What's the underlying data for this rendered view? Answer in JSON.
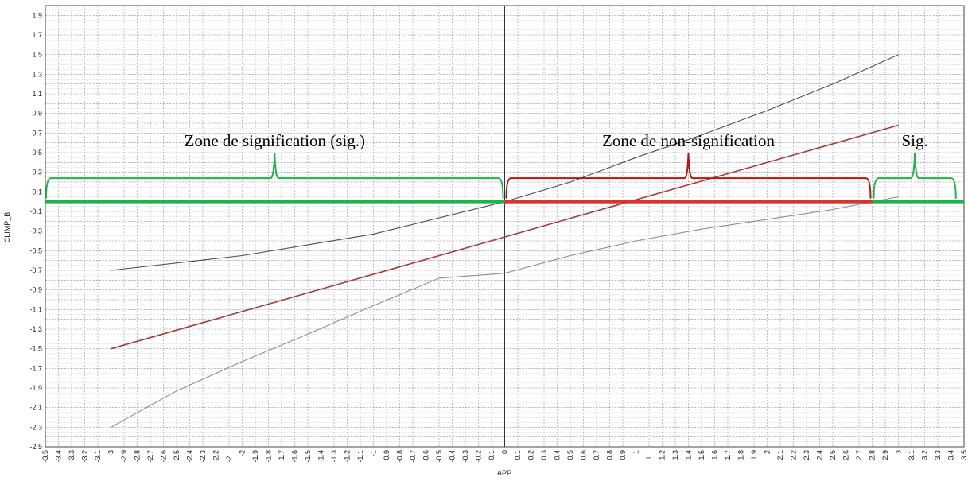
{
  "chart_data": {
    "type": "line",
    "xlabel": "APP",
    "ylabel": "CLIMP_B",
    "xlim": [
      -3.5,
      3.5
    ],
    "ylim": [
      -2.5,
      2.0
    ],
    "x_ticks": [
      -3.5,
      -3.4,
      -3.3,
      -3.2,
      -3.1,
      -3,
      -2.9,
      -2.8,
      -2.7,
      -2.6,
      -2.5,
      -2.4,
      -2.3,
      -2.2,
      -2.1,
      -2,
      -1.9,
      -1.8,
      -1.7,
      -1.6,
      -1.5,
      -1.4,
      -1.3,
      -1.2,
      -1.1,
      -1,
      -0.9,
      -0.8,
      -0.7,
      -0.6,
      -0.5,
      -0.4,
      -0.3,
      -0.2,
      -0.1,
      0,
      0.1,
      0.2,
      0.3,
      0.4,
      0.5,
      0.6,
      0.7,
      0.8,
      0.9,
      1,
      1.1,
      1.2,
      1.3,
      1.4,
      1.5,
      1.6,
      1.7,
      1.8,
      1.9,
      2,
      2.1,
      2.2,
      2.3,
      2.4,
      2.5,
      2.6,
      2.7,
      2.8,
      2.9,
      3,
      3.1,
      3.2,
      3.3,
      3.4,
      3.5
    ],
    "y_ticks": [
      1.9,
      1.7,
      1.5,
      1.3,
      1.1,
      0.9,
      0.7,
      0.5,
      0.3,
      0.1,
      -0.1,
      -0.3,
      -0.5,
      -0.7,
      -0.9,
      -1.1,
      -1.3,
      -1.5,
      -1.7,
      -1.9,
      -2.1,
      -2.3,
      -2.5
    ],
    "grid": true,
    "series": [
      {
        "key": "estimate",
        "color": "#a83a3a",
        "points": [
          [
            -3,
            -1.5
          ],
          [
            3,
            0.78
          ]
        ]
      },
      {
        "key": "upper_bound",
        "color": "#4a4a70",
        "points": [
          [
            -3,
            -0.7
          ],
          [
            -2,
            -0.55
          ],
          [
            -1,
            -0.33
          ],
          [
            0,
            0.0
          ],
          [
            0.5,
            0.2
          ],
          [
            1,
            0.45
          ],
          [
            1.5,
            0.68
          ],
          [
            2,
            0.93
          ],
          [
            2.5,
            1.2
          ],
          [
            3,
            1.5
          ]
        ]
      },
      {
        "key": "lower_bound",
        "color": "#8a8aa8",
        "points": [
          [
            -3,
            -2.3
          ],
          [
            -2.5,
            -1.93
          ],
          [
            -2,
            -1.63
          ],
          [
            -1.5,
            -1.35
          ],
          [
            -1,
            -1.06
          ],
          [
            -0.5,
            -0.78
          ],
          [
            0,
            -0.73
          ],
          [
            0.5,
            -0.55
          ],
          [
            1,
            -0.4
          ],
          [
            1.5,
            -0.28
          ],
          [
            2,
            -0.18
          ],
          [
            2.5,
            -0.08
          ],
          [
            3,
            0.05
          ]
        ]
      }
    ],
    "zero_line": {
      "y": 0,
      "green_color": "#22b04a",
      "red_color": "#e03030",
      "red_range": [
        0,
        2.8
      ]
    },
    "annotations": [
      {
        "text": "Zone de signification (sig.)",
        "range": [
          -3.5,
          0
        ],
        "color": "#22b04a"
      },
      {
        "text": "Zone de non-signification",
        "range": [
          0,
          2.8
        ],
        "color": "#b01818"
      },
      {
        "text": "Sig.",
        "range": [
          2.8,
          3.45
        ],
        "color": "#22b04a"
      }
    ]
  }
}
